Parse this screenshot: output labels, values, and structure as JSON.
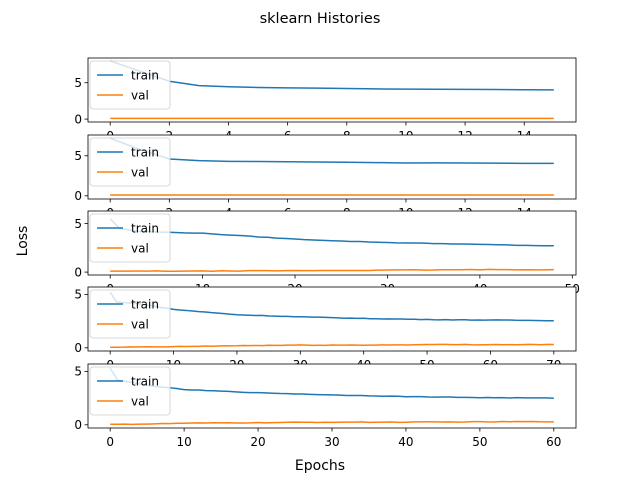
{
  "figure": {
    "title": "sklearn Histories",
    "xlabel": "Epochs",
    "ylabel": "Loss"
  },
  "colors": {
    "train": "#1f77b4",
    "val": "#ff7f0e",
    "axes": "#000000",
    "legend_border": "#cccccc",
    "background": "#ffffff"
  },
  "chart_data": [
    {
      "type": "line",
      "x_range": [
        0,
        15
      ],
      "xlim": [
        -0.75,
        15.75
      ],
      "ylim": [
        -0.4,
        8.4
      ],
      "xticks": [
        0,
        2,
        4,
        6,
        8,
        10,
        12,
        14
      ],
      "yticks": [
        0,
        5
      ],
      "legend_placement": "upper-left",
      "grid": false,
      "series": [
        {
          "name": "train",
          "values": [
            8.0,
            6.6,
            5.2,
            4.6,
            4.45,
            4.35,
            4.3,
            4.25,
            4.2,
            4.15,
            4.12,
            4.1,
            4.08,
            4.06,
            4.04,
            4.02
          ]
        },
        {
          "name": "val",
          "values": [
            0.1,
            0.1,
            0.1,
            0.1,
            0.1,
            0.1,
            0.1,
            0.1,
            0.1,
            0.1,
            0.1,
            0.1,
            0.1,
            0.1,
            0.1,
            0.1
          ]
        }
      ]
    },
    {
      "type": "line",
      "x_range": [
        0,
        15
      ],
      "xlim": [
        -0.75,
        15.75
      ],
      "ylim": [
        -0.4,
        7.6
      ],
      "xticks": [
        0,
        2,
        4,
        6,
        8,
        10,
        12,
        14
      ],
      "yticks": [
        0,
        5
      ],
      "legend_placement": "upper-left",
      "grid": false,
      "series": [
        {
          "name": "train",
          "values": [
            7.2,
            5.8,
            4.6,
            4.4,
            4.3,
            4.28,
            4.25,
            4.23,
            4.2,
            4.15,
            4.1,
            4.12,
            4.1,
            4.08,
            4.05,
            4.05
          ]
        },
        {
          "name": "val",
          "values": [
            0.1,
            0.1,
            0.1,
            0.1,
            0.1,
            0.1,
            0.1,
            0.1,
            0.1,
            0.1,
            0.1,
            0.1,
            0.1,
            0.1,
            0.1,
            0.1
          ]
        }
      ]
    },
    {
      "type": "line",
      "x_range": [
        0,
        48
      ],
      "xlim": [
        -2.4,
        50.4
      ],
      "ylim": [
        -0.3,
        6.3
      ],
      "xticks": [
        0,
        10,
        20,
        30,
        40,
        50
      ],
      "yticks": [
        0,
        5
      ],
      "legend_placement": "upper-left",
      "grid": false,
      "series": [
        {
          "name": "train",
          "keypoints": [
            [
              0,
              5.5
            ],
            [
              1,
              4.5
            ],
            [
              3,
              4.2
            ],
            [
              10,
              4.0
            ],
            [
              15,
              3.7
            ],
            [
              20,
              3.4
            ],
            [
              25,
              3.2
            ],
            [
              30,
              3.05
            ],
            [
              35,
              2.95
            ],
            [
              40,
              2.85
            ],
            [
              45,
              2.75
            ],
            [
              48,
              2.7
            ]
          ]
        },
        {
          "name": "val",
          "keypoints": [
            [
              0,
              0.1
            ],
            [
              10,
              0.1
            ],
            [
              20,
              0.15
            ],
            [
              30,
              0.2
            ],
            [
              40,
              0.25
            ],
            [
              48,
              0.25
            ]
          ]
        }
      ]
    },
    {
      "type": "line",
      "x_range": [
        0,
        70
      ],
      "xlim": [
        -3.5,
        73.5
      ],
      "ylim": [
        -0.3,
        5.7
      ],
      "xticks": [
        0,
        10,
        20,
        30,
        40,
        50,
        60,
        70
      ],
      "yticks": [
        0,
        5
      ],
      "legend_placement": "upper-left",
      "grid": false,
      "series": [
        {
          "name": "train",
          "keypoints": [
            [
              0,
              5.2
            ],
            [
              1,
              4.3
            ],
            [
              5,
              4.1
            ],
            [
              10,
              3.6
            ],
            [
              20,
              3.1
            ],
            [
              30,
              2.9
            ],
            [
              40,
              2.75
            ],
            [
              50,
              2.65
            ],
            [
              60,
              2.6
            ],
            [
              70,
              2.55
            ]
          ]
        },
        {
          "name": "val",
          "keypoints": [
            [
              0,
              0.05
            ],
            [
              10,
              0.1
            ],
            [
              20,
              0.2
            ],
            [
              30,
              0.25
            ],
            [
              40,
              0.25
            ],
            [
              50,
              0.3
            ],
            [
              60,
              0.3
            ],
            [
              70,
              0.3
            ]
          ]
        }
      ]
    },
    {
      "type": "line",
      "x_range": [
        0,
        60
      ],
      "xlim": [
        -3,
        63
      ],
      "ylim": [
        -0.3,
        5.7
      ],
      "xticks": [
        0,
        10,
        20,
        30,
        40,
        50,
        60
      ],
      "yticks": [
        0,
        5
      ],
      "legend_placement": "upper-left",
      "grid": false,
      "series": [
        {
          "name": "train",
          "keypoints": [
            [
              0,
              5.3
            ],
            [
              1,
              4.2
            ],
            [
              5,
              3.7
            ],
            [
              10,
              3.3
            ],
            [
              20,
              3.0
            ],
            [
              30,
              2.8
            ],
            [
              40,
              2.65
            ],
            [
              50,
              2.55
            ],
            [
              60,
              2.5
            ]
          ]
        },
        {
          "name": "val",
          "keypoints": [
            [
              0,
              0.05
            ],
            [
              5,
              0.07
            ],
            [
              10,
              0.15
            ],
            [
              20,
              0.2
            ],
            [
              30,
              0.25
            ],
            [
              40,
              0.25
            ],
            [
              50,
              0.28
            ],
            [
              60,
              0.3
            ]
          ]
        }
      ]
    }
  ]
}
